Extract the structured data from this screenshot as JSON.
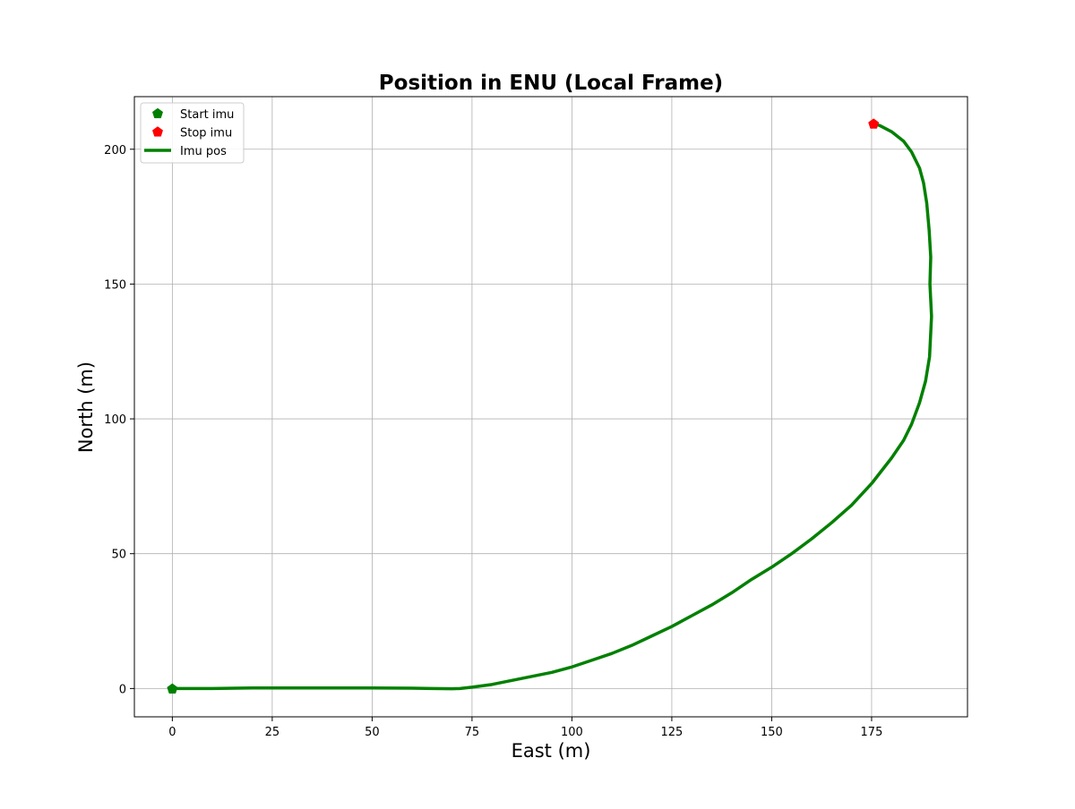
{
  "chart_data": {
    "type": "line",
    "title": "Position in ENU (Local Frame)",
    "xlabel": "East (m)",
    "ylabel": "North (m)",
    "xlim": [
      -9.5,
      199
    ],
    "ylim": [
      -10.5,
      219.5
    ],
    "xticks": [
      0,
      25,
      50,
      75,
      100,
      125,
      150,
      175
    ],
    "yticks": [
      0,
      50,
      100,
      150,
      200
    ],
    "grid": true,
    "legend_position": "upper-left",
    "series": [
      {
        "name": "Start imu",
        "kind": "marker",
        "marker": "pentagon",
        "color": "#008000",
        "x": [
          0
        ],
        "y": [
          0
        ]
      },
      {
        "name": "Stop imu",
        "kind": "marker",
        "marker": "pentagon",
        "color": "#ff0000",
        "x": [
          175.5
        ],
        "y": [
          209.5
        ]
      },
      {
        "name": "Imu pos",
        "kind": "line",
        "color": "#008000",
        "x": [
          0,
          10,
          20,
          30,
          40,
          50,
          60,
          65,
          70,
          72,
          75,
          80,
          85,
          90,
          95,
          100,
          105,
          110,
          115,
          120,
          125,
          130,
          135,
          140,
          145,
          150,
          155,
          160,
          165,
          170,
          175,
          180,
          183,
          185,
          187,
          188.5,
          189.5,
          190,
          189.6,
          189.8,
          189.4,
          188.8,
          188,
          187,
          185,
          183,
          180,
          177,
          175.5
        ],
        "y": [
          0,
          0,
          0.2,
          0.2,
          0.2,
          0.2,
          0.1,
          0,
          -0.1,
          0,
          0.5,
          1.5,
          3,
          4.5,
          6,
          8,
          10.5,
          13,
          16,
          19.5,
          23,
          27,
          31,
          35.5,
          40.5,
          45,
          50,
          55.5,
          61.5,
          68,
          76,
          85.5,
          92,
          98,
          106,
          114,
          123,
          138,
          150,
          160,
          170,
          180,
          187.5,
          193,
          199,
          203,
          206.5,
          208.8,
          209.5
        ]
      }
    ]
  }
}
